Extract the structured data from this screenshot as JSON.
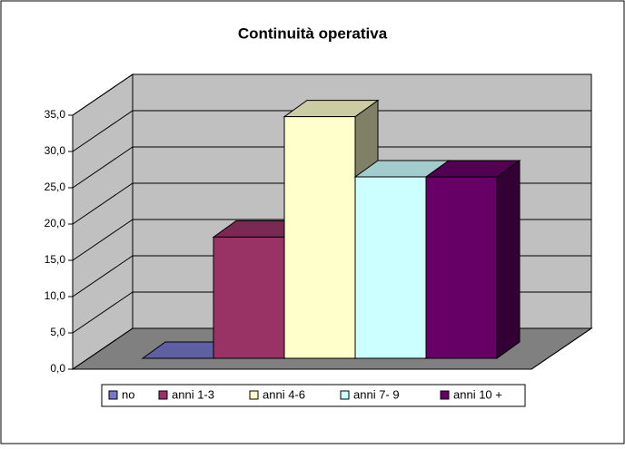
{
  "chart_data": {
    "type": "bar3d",
    "title": "Continuità operativa",
    "series": [
      {
        "name": "no",
        "color": "#7777cc",
        "values": [
          0
        ]
      },
      {
        "name": "anni 1-3",
        "color": "#993366",
        "values": [
          16.7
        ]
      },
      {
        "name": "anni 4-6",
        "color": "#ffffcc",
        "values": [
          33.3
        ]
      },
      {
        "name": "anni 7- 9",
        "color": "#ccffff",
        "values": [
          25
        ]
      },
      {
        "name": "anni 10 +",
        "color": "#660066",
        "values": [
          25
        ]
      }
    ],
    "ylim": [
      0,
      35
    ],
    "yticks": [
      {
        "value": 0,
        "label": "0,0"
      },
      {
        "value": 5,
        "label": "5,0"
      },
      {
        "value": 10,
        "label": "10,0"
      },
      {
        "value": 15,
        "label": "15,0"
      },
      {
        "value": 20,
        "label": "20,0"
      },
      {
        "value": 25,
        "label": "25,0"
      },
      {
        "value": 30,
        "label": "30,0"
      },
      {
        "value": 35,
        "label": "35,0"
      }
    ],
    "grid": true,
    "legend": "bottom"
  }
}
